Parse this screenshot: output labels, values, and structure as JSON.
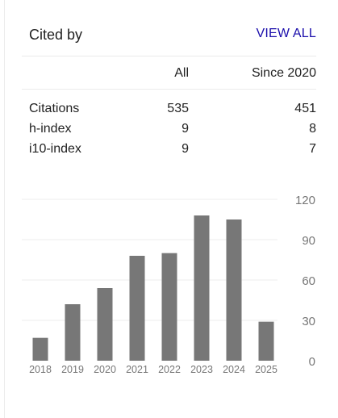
{
  "header": {
    "title": "Cited by",
    "view_all_label": "VIEW ALL"
  },
  "table": {
    "columns": [
      "",
      "All",
      "Since 2020"
    ],
    "rows": [
      {
        "label": "Citations",
        "all": "535",
        "since": "451"
      },
      {
        "label": "h-index",
        "all": "9",
        "since": "8"
      },
      {
        "label": "i10-index",
        "all": "9",
        "since": "7"
      }
    ]
  },
  "colors": {
    "bar": "#777777",
    "gridline": "#eeeeee",
    "tick_text": "#777777",
    "link": "#1a0dab"
  },
  "chart_data": {
    "type": "bar",
    "categories": [
      "2018",
      "2019",
      "2020",
      "2021",
      "2022",
      "2023",
      "2024",
      "2025"
    ],
    "values": [
      17,
      42,
      54,
      78,
      80,
      108,
      105,
      29
    ],
    "yticks": [
      "0",
      "30",
      "60",
      "90",
      "120"
    ],
    "ylim": [
      0,
      120
    ],
    "grid": true,
    "ytick_position": "right"
  }
}
